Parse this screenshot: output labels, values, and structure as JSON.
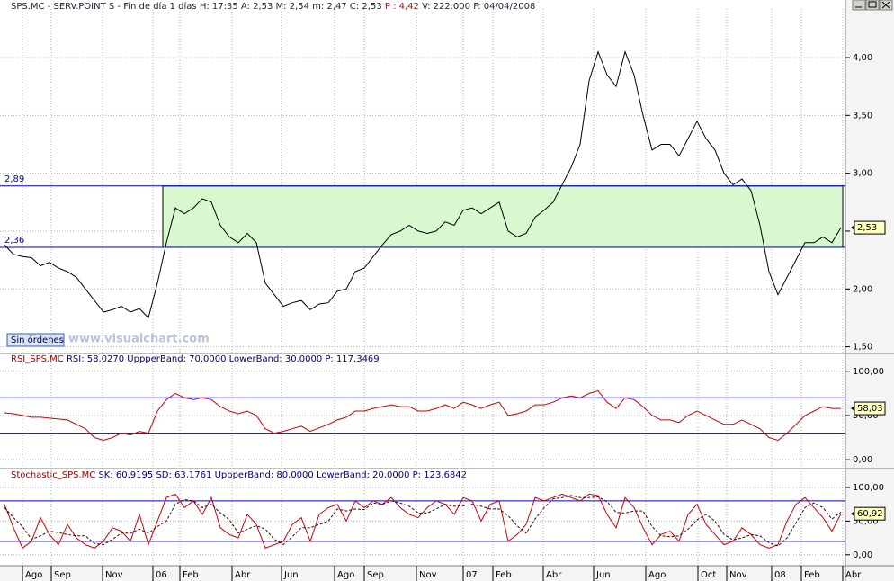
{
  "chart_data": [
    {
      "type": "line",
      "title": [
        "SPS.MC - SERV.POINT S - Fin de día 1 días H: 17:35 A: 2,53 M: 2,54 m: 2,47 C: 2,53 ",
        "P : 4,42",
        " V: 222.000 F: 04/04/2008"
      ],
      "color": "#000000",
      "values": [
        2.38,
        2.3,
        2.28,
        2.27,
        2.2,
        2.23,
        2.18,
        2.15,
        2.1,
        2.0,
        1.9,
        1.8,
        1.82,
        1.85,
        1.8,
        1.83,
        1.75,
        2.05,
        2.4,
        2.7,
        2.65,
        2.7,
        2.78,
        2.75,
        2.55,
        2.45,
        2.4,
        2.48,
        2.4,
        2.05,
        1.95,
        1.85,
        1.88,
        1.9,
        1.82,
        1.87,
        1.88,
        1.98,
        2.0,
        2.15,
        2.18,
        2.28,
        2.38,
        2.47,
        2.5,
        2.55,
        2.5,
        2.48,
        2.5,
        2.58,
        2.55,
        2.68,
        2.7,
        2.65,
        2.7,
        2.75,
        2.5,
        2.45,
        2.48,
        2.62,
        2.68,
        2.75,
        2.9,
        3.05,
        3.25,
        3.8,
        4.05,
        3.85,
        3.75,
        4.05,
        3.85,
        3.5,
        3.2,
        3.25,
        3.25,
        3.15,
        3.3,
        3.45,
        3.3,
        3.2,
        3.0,
        2.9,
        2.95,
        2.85,
        2.55,
        2.15,
        1.95,
        2.1,
        2.25,
        2.4,
        2.4,
        2.45,
        2.4,
        2.53
      ],
      "value_labels": [
        null,
        null,
        null,
        null,
        null,
        null,
        null,
        null,
        null,
        null,
        null,
        null,
        null,
        null,
        null,
        null,
        null,
        null,
        null,
        null,
        null,
        null,
        null,
        null,
        null,
        null,
        null,
        null,
        null,
        null,
        null,
        null,
        null,
        null,
        null,
        null,
        null,
        null,
        null,
        null,
        null,
        null,
        null,
        null,
        null,
        null,
        null,
        null,
        null,
        null,
        null,
        null,
        null,
        null,
        null,
        null,
        null,
        null,
        null,
        null,
        null,
        null,
        null,
        null,
        null,
        null,
        null,
        null,
        null,
        null,
        null,
        null,
        null,
        null,
        null,
        null,
        null,
        null,
        null,
        null,
        null,
        null,
        null,
        null,
        null,
        null,
        null,
        null,
        null,
        null,
        null,
        null,
        null,
        "2,53"
      ],
      "ylim": [
        1.45,
        4.42
      ],
      "yticks": [
        {
          "value": 1.5,
          "label": "1,50"
        },
        {
          "value": 2,
          "label": "2,00"
        },
        {
          "value": 2.5,
          "label": "2,50"
        },
        {
          "value": 3,
          "label": "3,00"
        },
        {
          "value": 3.5,
          "label": "3,50"
        },
        {
          "value": 4,
          "label": "4,00"
        }
      ],
      "hlines": [
        {
          "value": 2.89,
          "label": "2,89"
        },
        {
          "value": 2.36,
          "label": "2,36"
        }
      ],
      "grid": true
    },
    {
      "type": "line",
      "title": [
        "RSI_SPS.MC ",
        "RSI: 58,0270 UppperBand: 70,0000 LowerBand: 30,0000 P: 117,3469"
      ],
      "series": [
        {
          "color": "#cc0000",
          "values": [
            53,
            52,
            50,
            48,
            48,
            47,
            46,
            45,
            40,
            35,
            25,
            22,
            25,
            30,
            28,
            32,
            30,
            55,
            68,
            75,
            70,
            68,
            70,
            68,
            60,
            55,
            52,
            55,
            50,
            35,
            30,
            32,
            35,
            38,
            32,
            36,
            40,
            45,
            48,
            55,
            55,
            58,
            60,
            62,
            60,
            60,
            55,
            55,
            58,
            62,
            58,
            65,
            62,
            58,
            62,
            65,
            50,
            52,
            55,
            62,
            62,
            65,
            70,
            72,
            70,
            75,
            78,
            65,
            58,
            70,
            68,
            60,
            50,
            45,
            45,
            42,
            50,
            55,
            50,
            45,
            40,
            40,
            45,
            40,
            35,
            25,
            22,
            30,
            40,
            50,
            55,
            60,
            58,
            58.03
          ],
          "value_labels": [
            null,
            null,
            null,
            null,
            null,
            null,
            null,
            null,
            null,
            null,
            null,
            null,
            null,
            null,
            null,
            null,
            null,
            null,
            null,
            null,
            null,
            null,
            null,
            null,
            null,
            null,
            null,
            null,
            null,
            null,
            null,
            null,
            null,
            null,
            null,
            null,
            null,
            null,
            null,
            null,
            null,
            null,
            null,
            null,
            null,
            null,
            null,
            null,
            null,
            null,
            null,
            null,
            null,
            null,
            null,
            null,
            null,
            null,
            null,
            null,
            null,
            null,
            null,
            null,
            null,
            null,
            null,
            null,
            null,
            null,
            null,
            null,
            null,
            null,
            null,
            null,
            null,
            null,
            null,
            null,
            null,
            null,
            null,
            null,
            null,
            null,
            null,
            null,
            null,
            null,
            null,
            null,
            null,
            "58,03"
          ]
        }
      ],
      "ylim": [
        -7,
        113
      ],
      "yticks": [
        {
          "value": 0,
          "label": "0,00"
        },
        {
          "value": 50,
          "label": "50,00"
        },
        {
          "value": 100,
          "label": "100,00"
        }
      ],
      "bands": [
        70,
        30
      ],
      "grid": true
    },
    {
      "type": "line",
      "title": [
        "Stochastic_SPS.MC ",
        "SK: 60,9195 SD: 63,1761 UppperBand: 80,0000 LowerBand: 20,0000 P: 123,6842"
      ],
      "series": [
        {
          "color": "#cc0000",
          "values": [
            75,
            40,
            10,
            20,
            55,
            30,
            15,
            45,
            25,
            15,
            10,
            20,
            40,
            35,
            20,
            60,
            15,
            50,
            85,
            90,
            70,
            80,
            60,
            85,
            40,
            30,
            25,
            60,
            45,
            10,
            15,
            20,
            45,
            55,
            20,
            60,
            70,
            75,
            50,
            80,
            70,
            80,
            75,
            85,
            70,
            60,
            55,
            70,
            80,
            75,
            60,
            85,
            80,
            50,
            75,
            80,
            20,
            30,
            45,
            85,
            80,
            85,
            90,
            85,
            80,
            90,
            88,
            60,
            40,
            85,
            70,
            40,
            15,
            30,
            35,
            20,
            60,
            75,
            45,
            30,
            15,
            20,
            40,
            30,
            15,
            10,
            15,
            50,
            75,
            85,
            70,
            55,
            35,
            60.92
          ],
          "value_labels": [
            null,
            null,
            null,
            null,
            null,
            null,
            null,
            null,
            null,
            null,
            null,
            null,
            null,
            null,
            null,
            null,
            null,
            null,
            null,
            null,
            null,
            null,
            null,
            null,
            null,
            null,
            null,
            null,
            null,
            null,
            null,
            null,
            null,
            null,
            null,
            null,
            null,
            null,
            null,
            null,
            null,
            null,
            null,
            null,
            null,
            null,
            null,
            null,
            null,
            null,
            null,
            null,
            null,
            null,
            null,
            null,
            null,
            null,
            null,
            null,
            null,
            null,
            null,
            null,
            null,
            null,
            null,
            null,
            null,
            null,
            null,
            null,
            null,
            null,
            null,
            null,
            null,
            null,
            null,
            null,
            null,
            null,
            null,
            null,
            null,
            null,
            null,
            null,
            null,
            null,
            null,
            null,
            null,
            "60,92"
          ]
        },
        {
          "color": "#400000",
          "dashed": true,
          "values": [
            70,
            55,
            42,
            23,
            28,
            35,
            33,
            30,
            28,
            28,
            17,
            15,
            23,
            32,
            32,
            38,
            32,
            42,
            50,
            75,
            82,
            80,
            70,
            75,
            62,
            52,
            32,
            38,
            43,
            38,
            23,
            15,
            27,
            40,
            40,
            45,
            50,
            68,
            65,
            68,
            67,
            77,
            75,
            80,
            77,
            72,
            62,
            62,
            68,
            75,
            72,
            73,
            75,
            72,
            68,
            68,
            58,
            43,
            32,
            53,
            70,
            83,
            85,
            88,
            85,
            85,
            86,
            79,
            63,
            62,
            65,
            65,
            42,
            28,
            27,
            28,
            38,
            52,
            60,
            50,
            30,
            22,
            25,
            30,
            28,
            18,
            13,
            25,
            47,
            70,
            77,
            70,
            53,
            63.18
          ]
        }
      ],
      "ylim": [
        -15,
        124
      ],
      "yticks": [
        {
          "value": 0,
          "label": "0,00"
        },
        {
          "value": 50,
          "label": "50,00"
        },
        {
          "value": 100,
          "label": "100,00"
        }
      ],
      "bands": [
        80,
        20
      ],
      "grid": true,
      "xlim": [
        -0.5,
        93.5
      ],
      "xticks": [
        {
          "value": 2,
          "label": "Ago"
        },
        {
          "value": 5.2,
          "label": "Sep"
        },
        {
          "value": 10.9,
          "label": "Nov"
        },
        {
          "value": 16.5,
          "label": "06"
        },
        {
          "value": 19.5,
          "label": "Feb"
        },
        {
          "value": 25.3,
          "label": "Abr"
        },
        {
          "value": 30.8,
          "label": "Jun"
        },
        {
          "value": 36.7,
          "label": "Ago"
        },
        {
          "value": 40,
          "label": "Sep"
        },
        {
          "value": 45.8,
          "label": "Nov"
        },
        {
          "value": 51,
          "label": "07"
        },
        {
          "value": 54.3,
          "label": "Feb"
        },
        {
          "value": 59.9,
          "label": "Abr"
        },
        {
          "value": 65.5,
          "label": "Jun"
        },
        {
          "value": 71.3,
          "label": "Ago"
        },
        {
          "value": 77.1,
          "label": "Oct"
        },
        {
          "value": 80.3,
          "label": "Nov"
        },
        {
          "value": 85.3,
          "label": "08"
        },
        {
          "value": 88.6,
          "label": "Feb"
        },
        {
          "value": 93.2,
          "label": "Abr"
        }
      ]
    }
  ],
  "button": "Sin órdenes",
  "watermark": "www.visualchart.com"
}
